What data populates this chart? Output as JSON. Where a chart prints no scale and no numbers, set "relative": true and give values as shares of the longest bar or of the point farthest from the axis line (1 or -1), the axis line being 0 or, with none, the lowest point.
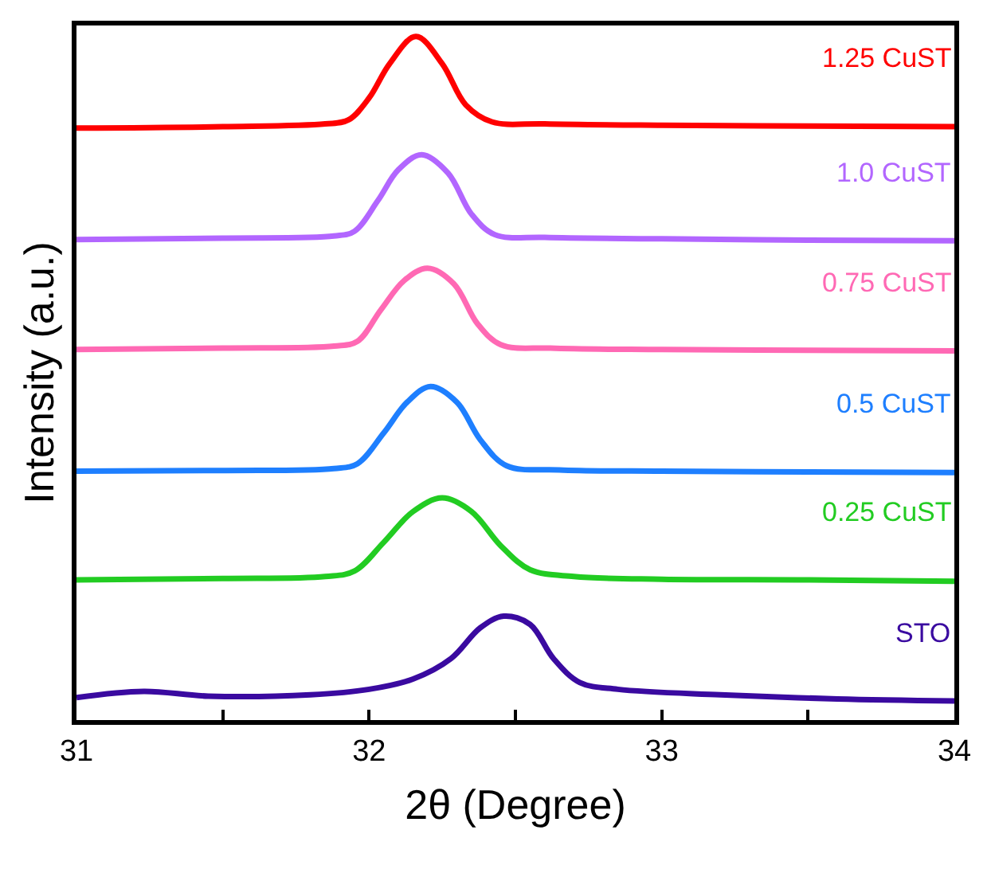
{
  "chart_data": {
    "type": "line",
    "relative": true,
    "xlabel": "2θ (Degree)",
    "ylabel": "Intensity (a.u.)",
    "xlim": [
      31,
      34
    ],
    "xticks": [
      31,
      {
        "value": 31.5,
        "label": null
      },
      32,
      {
        "value": 32.5,
        "label": null
      },
      33,
      {
        "value": 33.5,
        "label": null
      },
      34
    ],
    "tick_labels": "x",
    "legend": false,
    "marker": "none",
    "line_style": "solid",
    "series": [
      {
        "name": "STO",
        "color": "#3a0aa0",
        "x": [
          31,
          31.23,
          31.45,
          31.8,
          32.0,
          32.15,
          32.28,
          32.38,
          32.46,
          32.55,
          32.63,
          32.72,
          32.85,
          33.2,
          33.6,
          34
        ],
        "values": [
          0.033,
          0.042,
          0.035,
          0.037,
          0.045,
          0.06,
          0.09,
          0.135,
          0.152,
          0.14,
          0.09,
          0.055,
          0.045,
          0.037,
          0.031,
          0.028
        ]
      },
      {
        "name": "0.25 CuST",
        "color": "#22cc22",
        "x": [
          31,
          31.5,
          31.85,
          31.95,
          32.05,
          32.15,
          32.25,
          32.35,
          32.45,
          32.55,
          32.7,
          33,
          33.5,
          34
        ],
        "values": [
          0.205,
          0.207,
          0.21,
          0.218,
          0.26,
          0.305,
          0.325,
          0.305,
          0.255,
          0.22,
          0.21,
          0.206,
          0.205,
          0.203
        ]
      },
      {
        "name": "0.5 CuST",
        "color": "#1e7fff",
        "x": [
          31,
          31.5,
          31.88,
          31.96,
          32.05,
          32.13,
          32.21,
          32.3,
          32.38,
          32.47,
          32.65,
          33,
          33.5,
          34
        ],
        "values": [
          0.364,
          0.365,
          0.368,
          0.375,
          0.42,
          0.465,
          0.488,
          0.465,
          0.41,
          0.372,
          0.366,
          0.364,
          0.363,
          0.362
        ]
      },
      {
        "name": "0.75 CuST",
        "color": "#ff69b4",
        "x": [
          31,
          31.5,
          31.88,
          31.96,
          32.04,
          32.12,
          32.2,
          32.29,
          32.37,
          32.45,
          32.62,
          33,
          33.5,
          34
        ],
        "values": [
          0.542,
          0.544,
          0.547,
          0.554,
          0.6,
          0.643,
          0.661,
          0.638,
          0.58,
          0.549,
          0.544,
          0.542,
          0.541,
          0.54
        ]
      },
      {
        "name": "1.0 CuST",
        "color": "#b266ff",
        "x": [
          31,
          31.5,
          31.88,
          31.95,
          32.03,
          32.1,
          32.18,
          32.27,
          32.35,
          32.43,
          32.6,
          33,
          33.5,
          34
        ],
        "values": [
          0.703,
          0.705,
          0.708,
          0.715,
          0.76,
          0.805,
          0.827,
          0.8,
          0.74,
          0.71,
          0.706,
          0.704,
          0.702,
          0.701
        ]
      },
      {
        "name": "1.25 CuST",
        "color": "#ff0000",
        "x": [
          31,
          31.5,
          31.85,
          31.93,
          32.0,
          32.07,
          32.16,
          32.25,
          32.33,
          32.42,
          32.6,
          33,
          33.5,
          34
        ],
        "values": [
          0.866,
          0.868,
          0.872,
          0.878,
          0.91,
          0.96,
          1.0,
          0.96,
          0.9,
          0.875,
          0.872,
          0.87,
          0.869,
          0.868
        ]
      }
    ]
  }
}
